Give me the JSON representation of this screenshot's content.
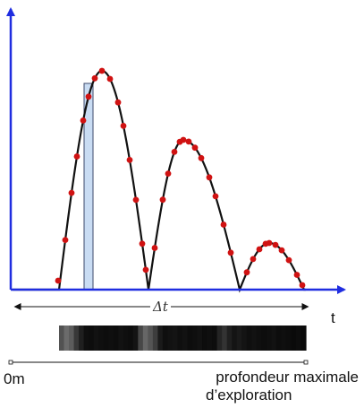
{
  "labels": {
    "t_axis": "t",
    "delta_t": "Δt",
    "start": "0m",
    "end_line1": "profondeur maximale",
    "end_line2": "d’exploration"
  },
  "colors": {
    "axis": "#1f2de0",
    "curve": "#111111",
    "sample_dot": "#d01212",
    "highlight_fill": "#c9dcf3",
    "highlight_stroke": "#3d4a6b"
  },
  "strip_levels": [
    0.32,
    0.42,
    0.36,
    0.22,
    0.12,
    0.06,
    0.05,
    0.07,
    0.06,
    0.05,
    0.06,
    0.05,
    0.07,
    0.06,
    0.05,
    0.08,
    0.28,
    0.4,
    0.33,
    0.24,
    0.1,
    0.06,
    0.07,
    0.08,
    0.06,
    0.07,
    0.05,
    0.06,
    0.07,
    0.05,
    0.06,
    0.05,
    0.14,
    0.2,
    0.12,
    0.08,
    0.1,
    0.08,
    0.06,
    0.07,
    0.06,
    0.05,
    0.06,
    0.07,
    0.05,
    0.06,
    0.05,
    0.04,
    0.05,
    0.04
  ]
}
